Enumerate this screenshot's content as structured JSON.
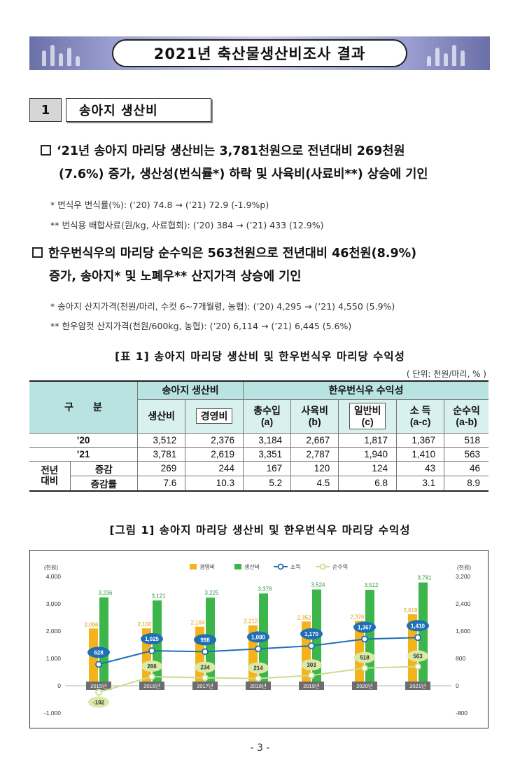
{
  "banner": {
    "title": "2021년 축산물생산비조사 결과"
  },
  "section": {
    "number": "1",
    "title": "송아지 생산비"
  },
  "bullet1": {
    "line1": "‘21년 송아지 마리당 생산비는 3,781천원으로 전년대비 269천원",
    "line2": "(7.6%) 증가, 생산성(번식률*) 하락 및 사육비(사료비**) 상승에 기인",
    "note1": "* 번식우 번식률(%): (’20) 74.8 → (’21) 72.9 (-1.9%p)",
    "note2": "** 번식용 배합사료(원/kg, 사료협회): (’20) 384 → (’21) 433 (12.9%)"
  },
  "bullet2": {
    "line1": "한우번식우의 마리당 순수익은 563천원으로 전년대비 46천원(8.9%)",
    "line2": "증가, 송아지* 및 노폐우** 산지가격 상승에 기인",
    "note1": "* 송아지 산지가격(천원/마리, 수컷 6~7개월령, 농협): (’20) 4,295 → (’21) 4,550 (5.9%)",
    "note2": "** 한우암컷 산지가격(천원/600kg, 농협): (’20) 6,114 → (’21) 6,445 (5.6%)"
  },
  "table": {
    "title": "[표 1] 송아지 마리당 생산비 및 한우번식우 마리당 수익성",
    "unit": "( 단위: 천원/마리, % )",
    "group_header": "구　　분",
    "group1": "송아지 생산비",
    "group2": "한우번식우 수익성",
    "cols": [
      "생산비",
      "경영비",
      "총수입\n(a)",
      "사육비\n(b)",
      "일반비\n(c)",
      "소 득\n(a-c)",
      "순수익\n(a-b)"
    ],
    "col_labels": {
      "c0": "생산비",
      "c1": "경영비",
      "c2a": "총수입",
      "c2b": "(a)",
      "c3a": "사육비",
      "c3b": "(b)",
      "c4a": "일반비",
      "c4b": "(c)",
      "c5a": "소 득",
      "c5b": "(a-c)",
      "c6a": "순수익",
      "c6b": "(a-b)"
    },
    "rows": [
      {
        "label": "’20",
        "values": [
          "3,512",
          "2,376",
          "3,184",
          "2,667",
          "1,817",
          "1,367",
          "518"
        ]
      },
      {
        "label": "’21",
        "values": [
          "3,781",
          "2,619",
          "3,351",
          "2,787",
          "1,940",
          "1,410",
          "563"
        ]
      },
      {
        "label": "증감",
        "values": [
          "269",
          "244",
          "167",
          "120",
          "124",
          "43",
          "46"
        ]
      },
      {
        "label": "증감률",
        "values": [
          "7.6",
          "10.3",
          "5.2",
          "4.5",
          "6.8",
          "3.1",
          "8.9"
        ]
      }
    ],
    "compare_label_1": "전년",
    "compare_label_2": "대비"
  },
  "figure": {
    "title": "[그림 1] 송아지 마리당 생산비 및 한우번식우 마리당 수익성"
  },
  "chart_data": {
    "type": "bar",
    "categories": [
      "2015년",
      "2016년",
      "2017년",
      "2018년",
      "2019년",
      "2020년",
      "2021년"
    ],
    "series": [
      {
        "name": "경영비",
        "kind": "bar",
        "axis": "left",
        "color": "#f6b21b",
        "values": [
          2096,
          2100,
          2164,
          2212,
          2352,
          2376,
          2619
        ]
      },
      {
        "name": "생산비",
        "kind": "bar",
        "axis": "left",
        "color": "#3cb54a",
        "values": [
          3236,
          3121,
          3225,
          3378,
          3524,
          3512,
          3781
        ]
      },
      {
        "name": "소득",
        "kind": "line",
        "axis": "right",
        "color": "#1f6fb5",
        "values": [
          628,
          1025,
          998,
          1080,
          1170,
          1367,
          1410
        ]
      },
      {
        "name": "순수익",
        "kind": "line",
        "axis": "right",
        "color": "#c5df8d",
        "values": [
          -192,
          266,
          234,
          214,
          303,
          518,
          563
        ]
      }
    ],
    "ylabel_left": "(천원)",
    "ylabel_right": "(천원)",
    "ylim_left": [
      -1000,
      4000
    ],
    "ylim_right": [
      -800,
      3200
    ],
    "yticks_left": [
      "4,000",
      "3,000",
      "2,000",
      "1,000",
      "0",
      "-1,000"
    ],
    "yticks_right": [
      "3,200",
      "2,400",
      "1,600",
      "800",
      "0",
      "-800"
    ],
    "bar_labels_left": {
      "경영비": [
        "2,096",
        "2,100",
        "2,164",
        "2,212",
        "2,352",
        "2,376",
        "2,619"
      ],
      "생산비": [
        "3,236",
        "3,121",
        "3,225",
        "3,378",
        "3,524",
        "3,512",
        "3,781"
      ]
    },
    "line_labels": {
      "소득": [
        "628",
        "1,025",
        "998",
        "1,080",
        "1,170",
        "1,367",
        "1,410"
      ],
      "순수익": [
        "-192",
        "266",
        "234",
        "214",
        "303",
        "518",
        "563"
      ]
    },
    "legend_position": "top-center",
    "grid": false
  },
  "page_number": "- 3 -"
}
